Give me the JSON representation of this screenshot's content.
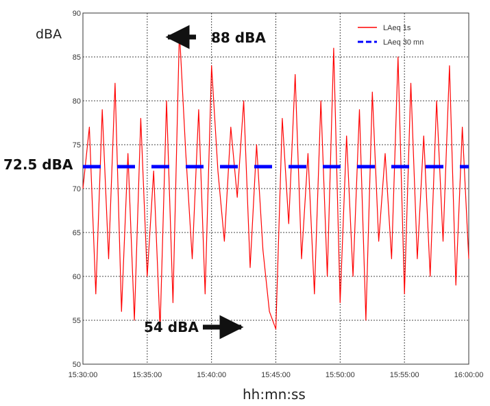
{
  "chart_data": {
    "type": "line",
    "ylabel": "dBA",
    "xlabel": "hh:mn:ss",
    "ylim": [
      50,
      90
    ],
    "yticks": [
      50,
      55,
      60,
      65,
      70,
      75,
      80,
      85,
      90
    ],
    "xlim_minutes": [
      0,
      30
    ],
    "xticks": [
      {
        "t": 0,
        "label": "15:30:00"
      },
      {
        "t": 5,
        "label": "15:35:00"
      },
      {
        "t": 10,
        "label": "15:40:00"
      },
      {
        "t": 15,
        "label": "15:45:00"
      },
      {
        "t": 20,
        "label": "15:50:00"
      },
      {
        "t": 25,
        "label": "15:55:00"
      },
      {
        "t": 30,
        "label": "16:00:00"
      }
    ],
    "grid": true,
    "legend_position": "top-right",
    "series": [
      {
        "name": "LAeq 1s",
        "color": "#ff0000",
        "style": "solid",
        "x_time": [
          "15:30:00",
          "15:30:30",
          "15:31:00",
          "15:31:30",
          "15:32:00",
          "15:32:30",
          "15:33:00",
          "15:33:30",
          "15:34:00",
          "15:34:30",
          "15:35:00",
          "15:35:30",
          "15:36:00",
          "15:36:30",
          "15:37:00",
          "15:37:30",
          "15:38:00",
          "15:38:30",
          "15:39:00",
          "15:39:30",
          "15:40:00",
          "15:40:30",
          "15:41:00",
          "15:41:30",
          "15:42:00",
          "15:42:30",
          "15:43:00",
          "15:43:30",
          "15:44:00",
          "15:44:30",
          "15:45:00",
          "15:45:30",
          "15:46:00",
          "15:46:30",
          "15:47:00",
          "15:47:30",
          "15:48:00",
          "15:48:30",
          "15:49:00",
          "15:49:30",
          "15:50:00",
          "15:50:30",
          "15:51:00",
          "15:51:30",
          "15:52:00",
          "15:52:30",
          "15:53:00",
          "15:53:30",
          "15:54:00",
          "15:54:30",
          "15:55:00",
          "15:55:30",
          "15:56:00",
          "15:56:30",
          "15:57:00",
          "15:57:30",
          "15:58:00",
          "15:58:30",
          "15:59:00",
          "15:59:30",
          "16:00:00"
        ],
        "values": [
          70,
          77,
          58,
          79,
          62,
          82,
          56,
          74,
          55,
          78,
          60,
          72,
          54,
          80,
          57,
          88,
          74,
          62,
          79,
          58,
          84,
          72,
          64,
          77,
          69,
          80,
          61,
          75,
          63,
          56,
          54,
          78,
          66,
          83,
          62,
          74,
          58,
          80,
          60,
          86,
          57,
          76,
          60,
          79,
          55,
          81,
          64,
          74,
          62,
          85,
          58,
          82,
          62,
          76,
          60,
          80,
          64,
          84,
          59,
          77,
          62
        ]
      },
      {
        "name": "LAeq 30 mn",
        "color": "#0000ff",
        "style": "dashed",
        "x_time": [
          "15:30:00",
          "16:00:00"
        ],
        "values": [
          72.5,
          72.5
        ]
      }
    ],
    "annotations": [
      {
        "text": "88 dBA",
        "arrow": "left",
        "points_to_time": "15:37:30",
        "points_to_value": 88
      },
      {
        "text": "54 dBA",
        "arrow": "right",
        "points_to_time": "15:45:00",
        "points_to_value": 54
      },
      {
        "text": "72.5 dBA",
        "points_to_value": 72.5
      }
    ]
  }
}
